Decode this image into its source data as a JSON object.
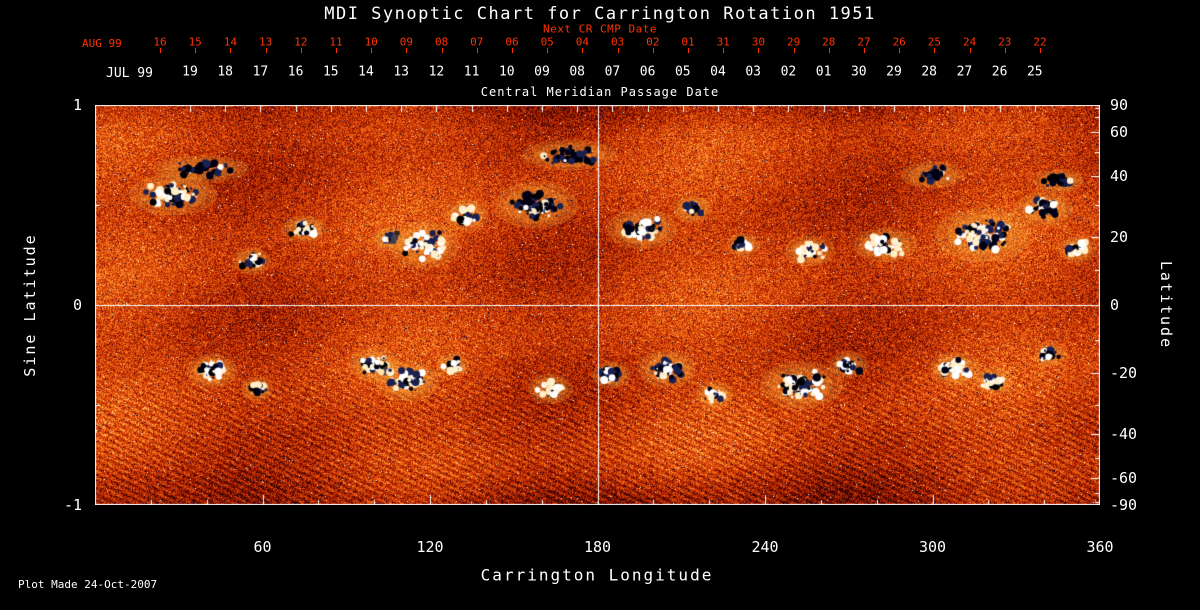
{
  "title": "MDI Synoptic Chart for Carrington Rotation 1951",
  "plot_made": "Plot Made 24-Oct-2007",
  "colors": {
    "page_background": "#000000",
    "axis": "#ffffff",
    "date_red": "#ff3300"
  },
  "chart_data": {
    "type": "heatmap",
    "title": "MDI Synoptic Chart for Carrington Rotation 1951",
    "xlabel": "Carrington Longitude",
    "ylabel_left": "Sine Latitude",
    "ylabel_right": "Latitude",
    "xlim": [
      0,
      360
    ],
    "x_major_ticks": [
      60,
      120,
      180,
      240,
      300,
      360
    ],
    "x_minor_tick_step_deg": 20,
    "sine_latitude_ticks": [
      1,
      0,
      -1
    ],
    "latitude_ticks": [
      90,
      60,
      40,
      20,
      0,
      -20,
      -40,
      -60,
      -90
    ],
    "latitude_minor_tick_step_deg": 10,
    "crosshair": {
      "carrington_longitude": 180,
      "sine_latitude": 0
    },
    "top_axis": {
      "next_cr_label": "Next CR CMP Date",
      "axis_label": "Central Meridian Passage Date",
      "next_row": {
        "month": "AUG 99",
        "dates": [
          "16",
          "15",
          "14",
          "13",
          "12",
          "11",
          "10",
          "09",
          "08",
          "07",
          "06",
          "05",
          "04",
          "03",
          "02",
          "01",
          "31",
          "30",
          "29",
          "28",
          "27",
          "26",
          "25",
          "24",
          "23",
          "22"
        ]
      },
      "current_row": {
        "month": "JUL 99",
        "dates": [
          "19",
          "18",
          "17",
          "16",
          "15",
          "14",
          "13",
          "12",
          "11",
          "10",
          "09",
          "08",
          "07",
          "06",
          "05",
          "04",
          "03",
          "02",
          "01",
          "30",
          "29",
          "28",
          "27",
          "26",
          "25"
        ]
      }
    },
    "palette": {
      "background_low": "#1a0000",
      "mid": "#cc2a00",
      "high": "#ff8c28",
      "peak": "#fff5c8",
      "negative_polarity": "#000028",
      "positive_polarity": "#ffffff"
    },
    "active_regions_format": [
      "carrington_longitude",
      "sine_latitude",
      "rx_px",
      "ry_px",
      "blob_count",
      "white_fraction"
    ],
    "active_regions": [
      [
        28,
        0.55,
        28,
        12,
        70,
        0.55
      ],
      [
        38,
        0.68,
        30,
        8,
        40,
        0.08
      ],
      [
        56,
        0.22,
        12,
        8,
        25,
        0.7
      ],
      [
        75,
        0.38,
        14,
        8,
        30,
        0.6
      ],
      [
        105,
        0.33,
        10,
        7,
        20,
        0.5
      ],
      [
        118,
        0.3,
        22,
        14,
        70,
        0.75
      ],
      [
        133,
        0.45,
        14,
        9,
        30,
        0.5
      ],
      [
        158,
        0.5,
        26,
        14,
        80,
        0.25
      ],
      [
        170,
        0.75,
        30,
        9,
        45,
        0.05
      ],
      [
        196,
        0.38,
        22,
        12,
        70,
        0.55
      ],
      [
        214,
        0.48,
        12,
        8,
        25,
        0.3
      ],
      [
        232,
        0.3,
        10,
        7,
        20,
        0.55
      ],
      [
        256,
        0.27,
        16,
        9,
        40,
        0.7
      ],
      [
        283,
        0.3,
        20,
        10,
        50,
        0.75
      ],
      [
        300,
        0.65,
        20,
        8,
        30,
        0.1
      ],
      [
        318,
        0.35,
        30,
        16,
        100,
        0.5
      ],
      [
        340,
        0.48,
        18,
        10,
        45,
        0.35
      ],
      [
        345,
        0.62,
        16,
        7,
        25,
        0.1
      ],
      [
        352,
        0.28,
        12,
        8,
        30,
        0.8
      ],
      [
        42,
        -0.33,
        16,
        10,
        40,
        0.55
      ],
      [
        58,
        -0.42,
        10,
        7,
        20,
        0.3
      ],
      [
        100,
        -0.3,
        16,
        10,
        40,
        0.6
      ],
      [
        112,
        -0.38,
        20,
        12,
        60,
        0.5
      ],
      [
        128,
        -0.3,
        10,
        7,
        25,
        0.6
      ],
      [
        163,
        -0.42,
        14,
        9,
        35,
        0.8
      ],
      [
        185,
        -0.35,
        12,
        8,
        30,
        0.4
      ],
      [
        205,
        -0.32,
        18,
        11,
        50,
        0.45
      ],
      [
        222,
        -0.45,
        12,
        8,
        25,
        0.35
      ],
      [
        253,
        -0.4,
        26,
        14,
        90,
        0.35
      ],
      [
        270,
        -0.3,
        12,
        8,
        30,
        0.6
      ],
      [
        308,
        -0.32,
        16,
        10,
        45,
        0.75
      ],
      [
        322,
        -0.38,
        12,
        8,
        30,
        0.6
      ],
      [
        342,
        -0.25,
        10,
        7,
        20,
        0.5
      ]
    ]
  }
}
